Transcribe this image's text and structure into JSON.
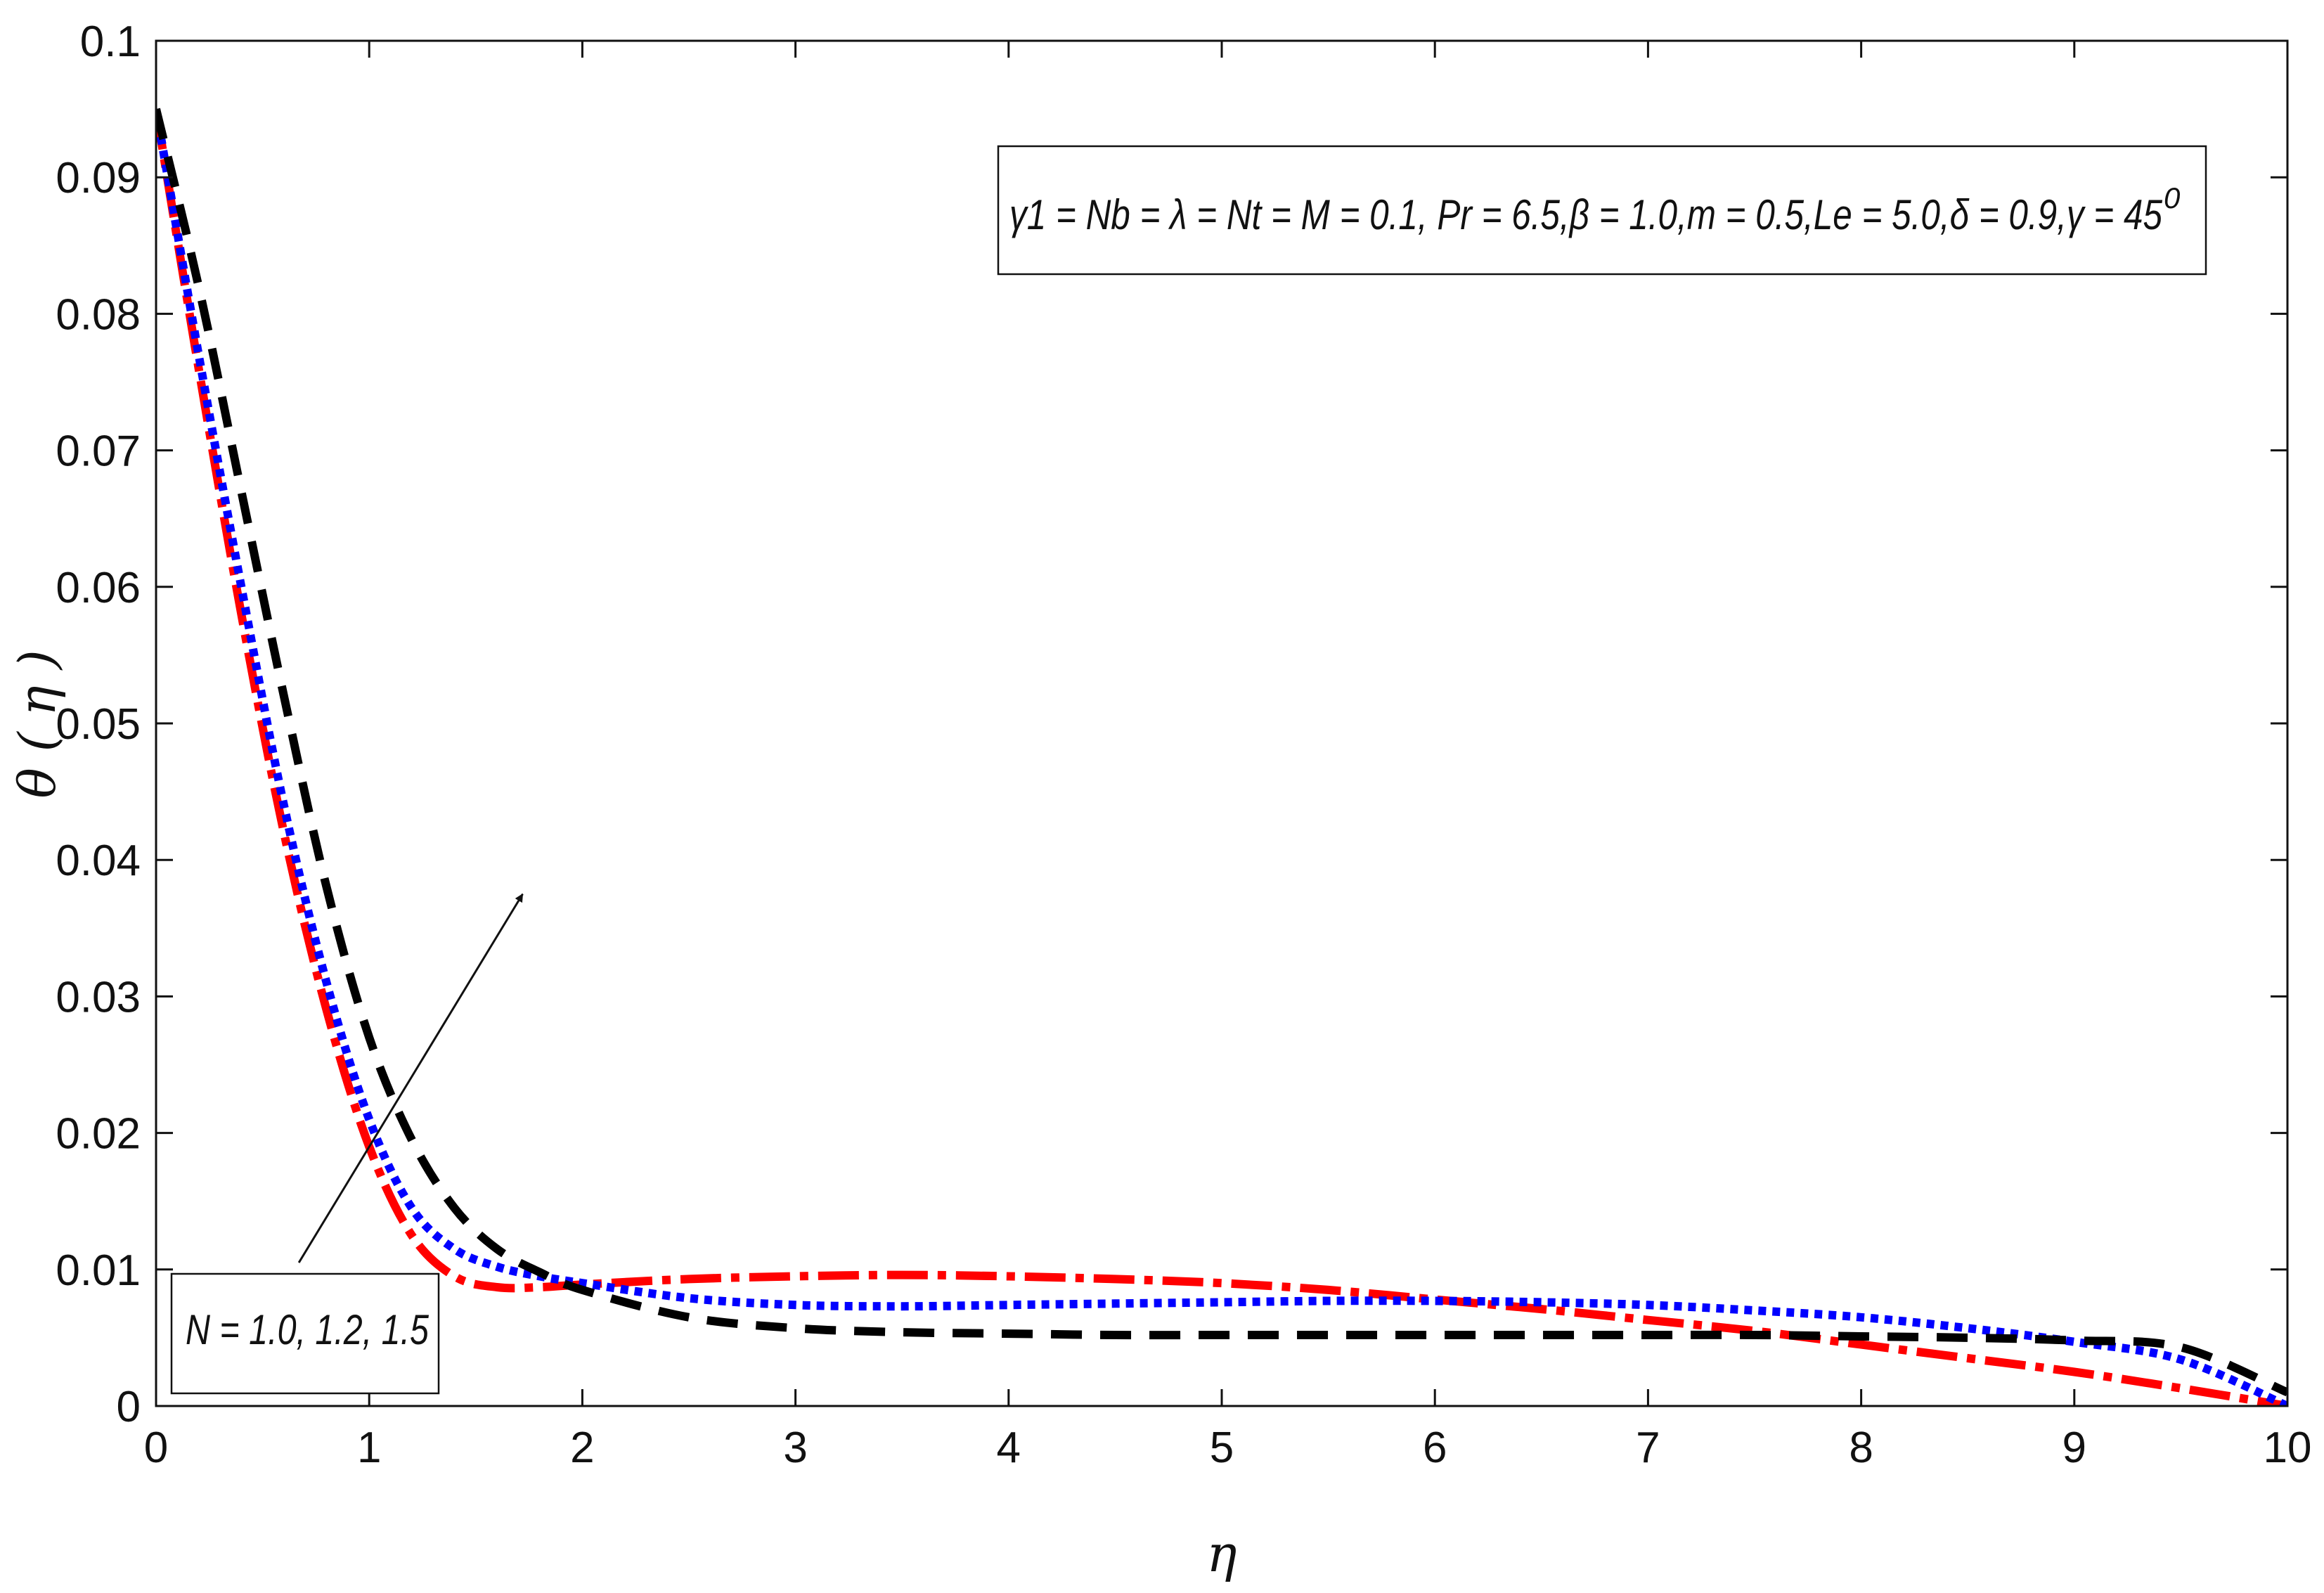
{
  "chart_data": {
    "type": "line",
    "xlabel": "η",
    "ylabel": "θ ( η )",
    "xlim": [
      0,
      10
    ],
    "ylim": [
      0,
      0.1
    ],
    "grid": false,
    "x_ticks": [
      "0",
      "1",
      "2",
      "3",
      "4",
      "5",
      "6",
      "7",
      "8",
      "9",
      "10"
    ],
    "y_ticks": [
      "0",
      "0.01",
      "0.02",
      "0.03",
      "0.04",
      "0.05",
      "0.06",
      "0.07",
      "0.08",
      "0.09",
      "0.1"
    ],
    "parameters_text": "γ1 = Nb = λ = Nt = M = 0.1, Pr = 6.5,β = 1.0,m = 0.5,Le = 5.0,δ = 0.9,γ = 45",
    "parameters_superscript": "0",
    "legend_text": "N = 1.0, 1.2, 1.5",
    "series": [
      {
        "style": "dash-dot",
        "color": "#ff0000",
        "x": [
          0,
          0.2,
          0.4,
          0.6,
          0.8,
          1.0,
          1.2,
          1.4,
          1.6,
          1.8,
          2.0,
          2.5,
          3.0,
          3.5,
          4.0,
          4.5,
          5.0,
          5.5,
          6.0,
          6.5,
          7.0,
          7.5,
          8.0,
          8.5,
          9.0,
          9.5,
          10.0
        ],
        "y": [
          0.095,
          0.076,
          0.058,
          0.042,
          0.029,
          0.019,
          0.0125,
          0.0095,
          0.0087,
          0.0087,
          0.0089,
          0.0093,
          0.0095,
          0.0096,
          0.0095,
          0.0093,
          0.009,
          0.0085,
          0.0078,
          0.0071,
          0.0063,
          0.0055,
          0.0045,
          0.0035,
          0.0025,
          0.0013,
          0.0
        ]
      },
      {
        "style": "dotted",
        "color": "#0000ff",
        "x": [
          0,
          0.2,
          0.4,
          0.6,
          0.8,
          1.0,
          1.2,
          1.4,
          1.6,
          1.8,
          2.0,
          2.5,
          3.0,
          3.5,
          4.0,
          4.5,
          5.0,
          5.5,
          6.0,
          6.5,
          7.0,
          7.5,
          8.0,
          8.5,
          9.0,
          9.5,
          10.0
        ],
        "y": [
          0.095,
          0.077,
          0.06,
          0.044,
          0.031,
          0.021,
          0.0145,
          0.0115,
          0.0102,
          0.0095,
          0.009,
          0.0079,
          0.0074,
          0.0073,
          0.0074,
          0.0075,
          0.0076,
          0.0077,
          0.0077,
          0.0076,
          0.0074,
          0.007,
          0.0065,
          0.0057,
          0.0047,
          0.0034,
          0.0
        ]
      },
      {
        "style": "dashed",
        "color": "#000000",
        "x": [
          0,
          0.2,
          0.4,
          0.6,
          0.8,
          1.0,
          1.2,
          1.4,
          1.6,
          1.8,
          2.0,
          2.5,
          3.0,
          3.5,
          4.0,
          4.5,
          5.0,
          5.5,
          6.0,
          6.5,
          7.0,
          7.5,
          8.0,
          8.5,
          9.0,
          9.5,
          10.0
        ],
        "y": [
          0.095,
          0.082,
          0.067,
          0.052,
          0.038,
          0.027,
          0.0195,
          0.0145,
          0.0115,
          0.0098,
          0.0085,
          0.0065,
          0.0057,
          0.0054,
          0.0053,
          0.0052,
          0.0052,
          0.0052,
          0.0052,
          0.0052,
          0.0052,
          0.0052,
          0.0051,
          0.005,
          0.0048,
          0.0043,
          0.001
        ]
      }
    ],
    "arrow": {
      "from": [
        0.67,
        0.0105
      ],
      "to": [
        1.72,
        0.0375
      ]
    }
  }
}
